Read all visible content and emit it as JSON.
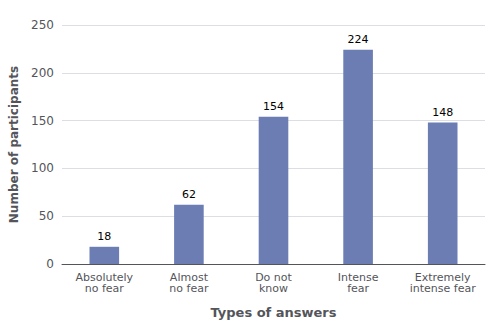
{
  "chart_data": {
    "type": "bar",
    "categories": [
      "Absolutely\nno fear",
      "Almost\nno fear",
      "Do not\nknow",
      "Intense\nfear",
      "Extremely\nintense fear"
    ],
    "values": [
      18,
      62,
      154,
      224,
      148
    ],
    "color": "#6b7db3",
    "xlabel": "Types of answers",
    "ylabel": "Number of participants",
    "ylim": [
      0,
      250
    ],
    "yticks": [
      0,
      50,
      100,
      150,
      200,
      250
    ],
    "grid": true,
    "data_labels": true
  }
}
